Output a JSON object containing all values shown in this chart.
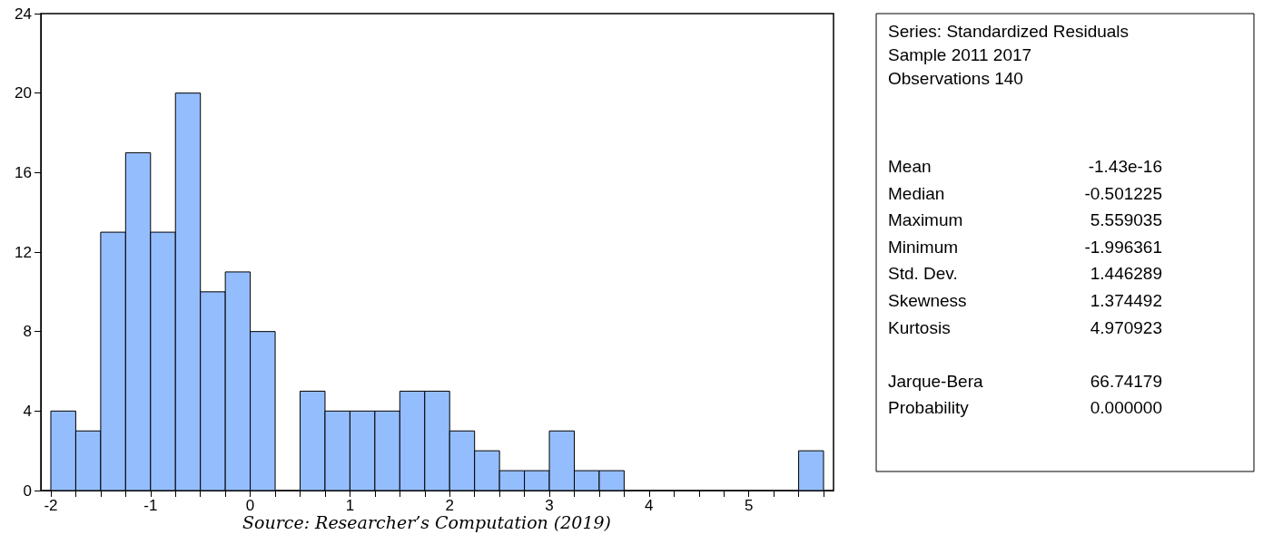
{
  "chart_data": {
    "type": "histogram",
    "bins": [
      -2,
      -1.75,
      -1.5,
      -1.25,
      -1,
      -0.75,
      -0.5,
      -0.25,
      0,
      0.25,
      0.5,
      0.75,
      1,
      1.25,
      1.5,
      1.75,
      2,
      2.25,
      2.5,
      2.75,
      3,
      3.25,
      3.5,
      3.75,
      4,
      4.25,
      4.5,
      4.75,
      5,
      5.25,
      5.5,
      5.75
    ],
    "values": [
      4,
      3,
      13,
      17,
      13,
      20,
      10,
      11,
      8,
      0,
      5,
      4,
      4,
      4,
      5,
      5,
      3,
      2,
      1,
      1,
      3,
      1,
      1,
      0,
      0,
      0,
      0,
      0,
      0,
      0,
      2
    ],
    "color": "#94bdfd",
    "xlim": [
      -2.1,
      5.85
    ],
    "xticks": [
      -2,
      {
        "value": -1.75,
        "label": null
      },
      {
        "value": -1.5,
        "label": null
      },
      {
        "value": -1.25,
        "label": null
      },
      -1,
      {
        "value": -0.75,
        "label": null
      },
      {
        "value": -0.5,
        "label": null
      },
      {
        "value": -0.25,
        "label": null
      },
      0,
      {
        "value": 0.25,
        "label": null
      },
      {
        "value": 0.5,
        "label": null
      },
      {
        "value": 0.75,
        "label": null
      },
      1,
      {
        "value": 1.25,
        "label": null
      },
      {
        "value": 1.5,
        "label": null
      },
      {
        "value": 1.75,
        "label": null
      },
      2,
      {
        "value": 2.25,
        "label": null
      },
      {
        "value": 2.5,
        "label": null
      },
      {
        "value": 2.75,
        "label": null
      },
      3,
      {
        "value": 3.25,
        "label": null
      },
      {
        "value": 3.5,
        "label": null
      },
      {
        "value": 3.75,
        "label": null
      },
      4,
      {
        "value": 4.25,
        "label": null
      },
      {
        "value": 4.5,
        "label": null
      },
      {
        "value": 4.75,
        "label": null
      },
      5,
      {
        "value": 5.25,
        "label": null
      },
      {
        "value": 5.5,
        "label": null
      },
      {
        "value": 5.75,
        "label": null
      }
    ],
    "ylim": [
      0,
      24
    ],
    "yticks": [
      0,
      4,
      8,
      12,
      16,
      20,
      24
    ],
    "grid": false,
    "annotations": [
      "Series: Standardized Residuals",
      "Sample 2011 2017",
      "Observations 140",
      "Mean\t-1.43e-16",
      "Median\t-0.501225",
      "Maximum\t5.559035",
      "Minimum\t-1.996361",
      "Std. Dev.\t1.446289",
      "Skewness\t1.374492",
      "Kurtosis\t4.970923",
      "Jarque-Bera\t66.74179",
      "Probability\t0.000000",
      "Source: Researcher’s Computation (2019)"
    ]
  }
}
